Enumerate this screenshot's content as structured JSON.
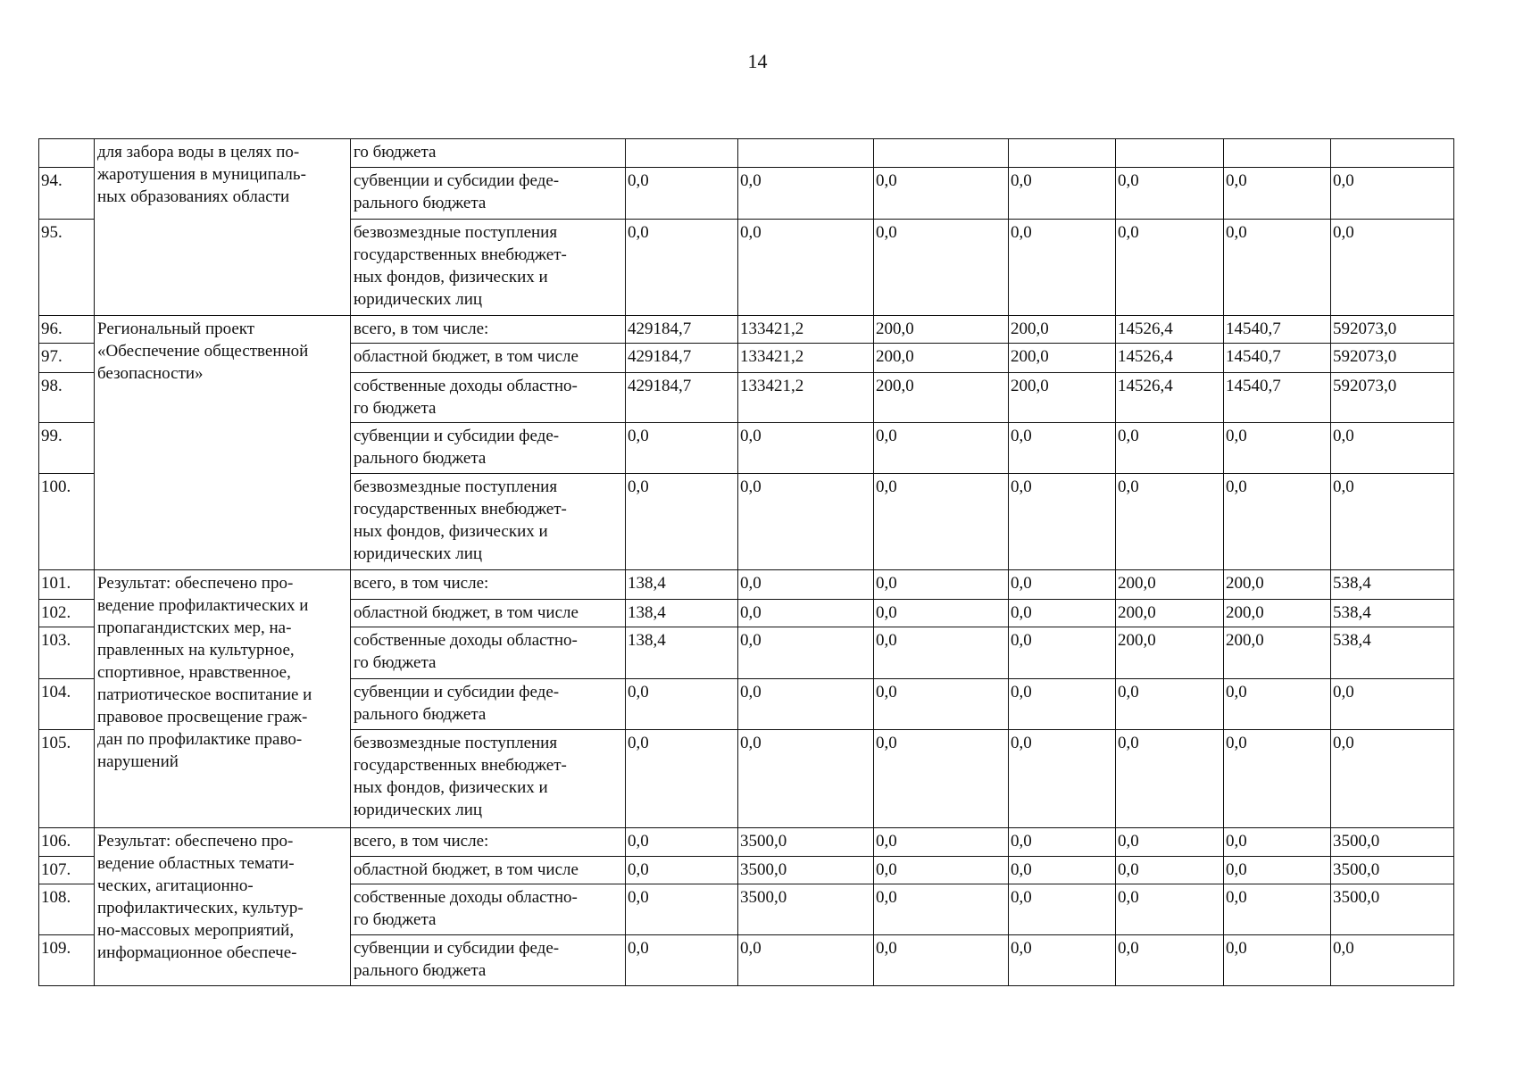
{
  "page_number": "14",
  "groups": [
    {
      "description": "для забора воды в целях по-\nжаротушения в муниципаль-\nных образованиях области",
      "start": 0,
      "span": 3
    },
    {
      "description": "Региональный проект\n«Обеспечение общественной\nбезопасности»",
      "start": 3,
      "span": 5
    },
    {
      "description": "Результат: обеспечено про-\nведение профилактических и\nпропагандистских мер, на-\nправленных на культурное,\nспортивное, нравственное,\nпатриотическое воспитание и\nправовое просвещение граж-\nдан по профилактике право-\nнарушений",
      "start": 8,
      "span": 5
    },
    {
      "description": "Результат: обеспечено про-\nведение областных темати-\nческих, агитационно-\nпрофилактических, культур-\nно-массовых мероприятий,\nинформационное обеспече-",
      "start": 13,
      "span": 4
    }
  ],
  "rows": [
    {
      "num": "",
      "source": "го бюджета",
      "values": [
        "",
        "",
        "",
        "",
        "",
        "",
        ""
      ]
    },
    {
      "num": "94.",
      "source": "субвенции и субсидии феде-\nрального бюджета",
      "values": [
        "0,0",
        "0,0",
        "0,0",
        "0,0",
        "0,0",
        "0,0",
        "0,0"
      ]
    },
    {
      "num": "95.",
      "source": "безвозмездные поступления\nгосударственных внебюджет-\nных фондов, физических и\nюридических лиц",
      "values": [
        "0,0",
        "0,0",
        "0,0",
        "0,0",
        "0,0",
        "0,0",
        "0,0"
      ]
    },
    {
      "num": "96.",
      "source": "всего, в том числе:",
      "values": [
        "429184,7",
        "133421,2",
        "200,0",
        "200,0",
        "14526,4",
        "14540,7",
        "592073,0"
      ]
    },
    {
      "num": "97.",
      "source": "областной бюджет, в том числе",
      "values": [
        "429184,7",
        "133421,2",
        "200,0",
        "200,0",
        "14526,4",
        "14540,7",
        "592073,0"
      ]
    },
    {
      "num": "98.",
      "source": "собственные доходы областно-\nго бюджета",
      "values": [
        "429184,7",
        "133421,2",
        "200,0",
        "200,0",
        "14526,4",
        "14540,7",
        "592073,0"
      ]
    },
    {
      "num": "99.",
      "source": "субвенции и субсидии феде-\nрального бюджета",
      "values": [
        "0,0",
        "0,0",
        "0,0",
        "0,0",
        "0,0",
        "0,0",
        "0,0"
      ]
    },
    {
      "num": "100.",
      "source": "безвозмездные поступления\nгосударственных внебюджет-\nных фондов, физических и\nюридических лиц",
      "values": [
        "0,0",
        "0,0",
        "0,0",
        "0,0",
        "0,0",
        "0,0",
        "0,0"
      ]
    },
    {
      "num": "101.",
      "source": "всего, в том числе:",
      "values": [
        "138,4",
        "0,0",
        "0,0",
        "0,0",
        "200,0",
        "200,0",
        "538,4"
      ]
    },
    {
      "num": "102.",
      "source": "областной бюджет, в том числе",
      "values": [
        "138,4",
        "0,0",
        "0,0",
        "0,0",
        "200,0",
        "200,0",
        "538,4"
      ]
    },
    {
      "num": "103.",
      "source": "собственные доходы областно-\nго бюджета",
      "values": [
        "138,4",
        "0,0",
        "0,0",
        "0,0",
        "200,0",
        "200,0",
        "538,4"
      ]
    },
    {
      "num": "104.",
      "source": "субвенции и субсидии феде-\nрального бюджета",
      "values": [
        "0,0",
        "0,0",
        "0,0",
        "0,0",
        "0,0",
        "0,0",
        "0,0"
      ]
    },
    {
      "num": "105.",
      "source": "безвозмездные поступления\nгосударственных внебюджет-\nных фондов, физических и\nюридических лиц",
      "values": [
        "0,0",
        "0,0",
        "0,0",
        "0,0",
        "0,0",
        "0,0",
        "0,0"
      ]
    },
    {
      "num": "106.",
      "source": "всего, в том числе:",
      "values": [
        "0,0",
        "3500,0",
        "0,0",
        "0,0",
        "0,0",
        "0,0",
        "3500,0"
      ]
    },
    {
      "num": "107.",
      "source": "областной бюджет, в том числе",
      "values": [
        "0,0",
        "3500,0",
        "0,0",
        "0,0",
        "0,0",
        "0,0",
        "3500,0"
      ]
    },
    {
      "num": "108.",
      "source": "собственные доходы областно-\nго бюджета",
      "values": [
        "0,0",
        "3500,0",
        "0,0",
        "0,0",
        "0,0",
        "0,0",
        "3500,0"
      ]
    },
    {
      "num": "109.",
      "source": "субвенции и субсидии феде-\nрального бюджета",
      "values": [
        "0,0",
        "0,0",
        "0,0",
        "0,0",
        "0,0",
        "0,0",
        "0,0"
      ]
    }
  ]
}
